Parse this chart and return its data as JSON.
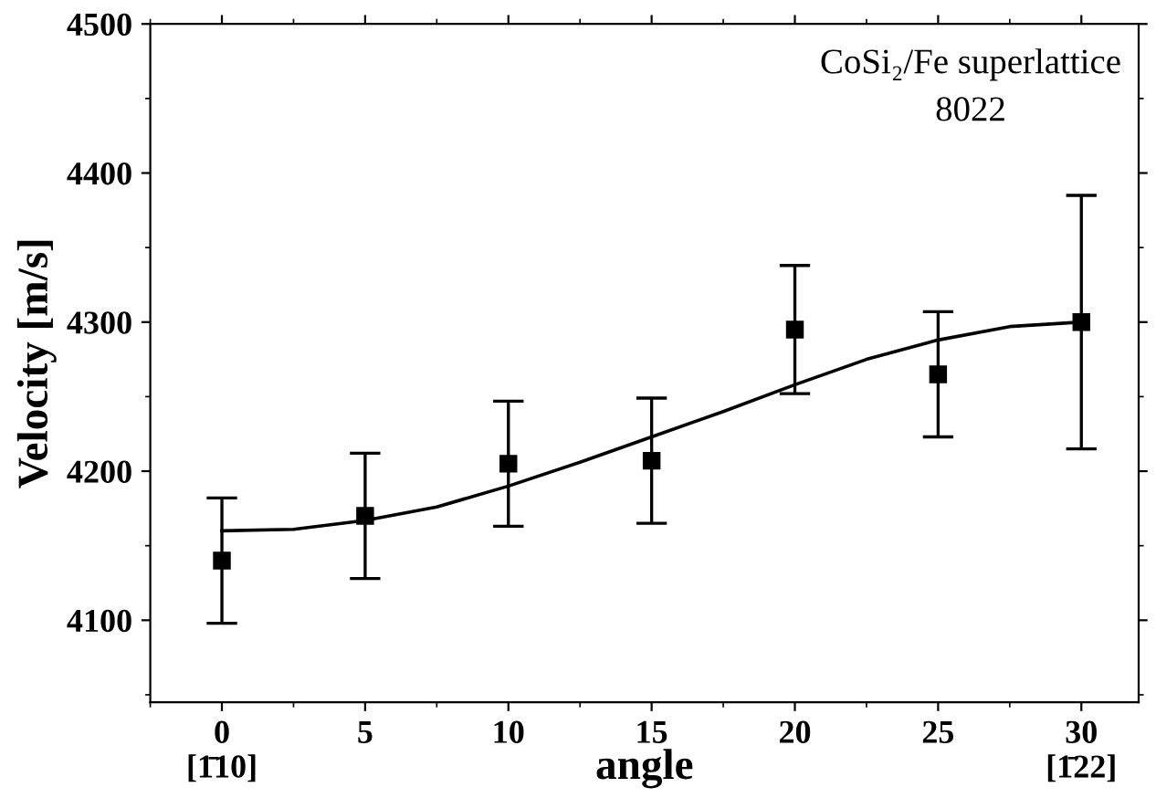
{
  "chart_data": {
    "type": "scatter",
    "xlabel": "angle",
    "ylabel": "Velocity [m/s]",
    "annotations": [
      "CoSi₂/Fe superlattice",
      "8022"
    ],
    "xlim": [
      -2.5,
      32
    ],
    "ylim": [
      4045,
      4500
    ],
    "xticks": [
      {
        "value": 0,
        "label": "0\n[1̄10]"
      },
      5,
      10,
      15,
      20,
      25,
      {
        "value": 30,
        "label": "30\n[1̄22]"
      }
    ],
    "yticks": [
      4100,
      4200,
      4300,
      4400,
      4500
    ],
    "grid": false,
    "legend": false,
    "marker": "square",
    "series": [
      {
        "color": "#000000",
        "x": [
          0,
          5,
          10,
          15,
          20,
          25,
          30
        ],
        "values": [
          4140,
          4170,
          4205,
          4207,
          4295,
          4265,
          4300
        ],
        "errors": [
          42,
          42,
          42,
          42,
          43,
          42,
          85
        ]
      },
      {
        "type": "line",
        "color": "#000000",
        "line_style": "solid",
        "marker": "none",
        "x": [
          0,
          2.5,
          5,
          7.5,
          10,
          12.5,
          15,
          17.5,
          20,
          22.5,
          25,
          27.5,
          30
        ],
        "values": [
          4160,
          4161,
          4167,
          4176,
          4190,
          4206,
          4223,
          4240,
          4258,
          4275,
          4288,
          4297,
          4300
        ]
      }
    ]
  }
}
